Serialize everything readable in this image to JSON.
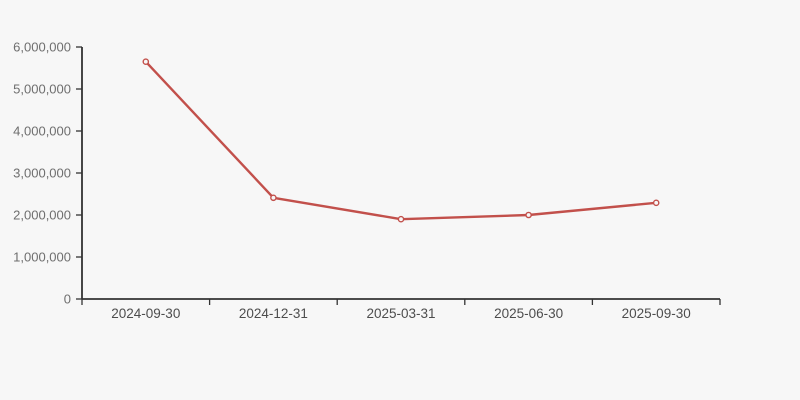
{
  "chart_data": {
    "type": "line",
    "title": "",
    "categories": [
      "2024-09-30",
      "2024-12-31",
      "2025-03-31",
      "2025-06-30",
      "2025-09-30"
    ],
    "series": [
      {
        "name": "value",
        "values": [
          5650000,
          2410000,
          1900000,
          2000000,
          2290000
        ]
      }
    ],
    "xlabel": "",
    "ylabel": "",
    "ylim": [
      0,
      6000000
    ],
    "y_tick_interval": 1000000,
    "y_tick_labels": [
      "0",
      "1,000,000",
      "2,000,000",
      "3,000,000",
      "4,000,000",
      "5,000,000",
      "6,000,000"
    ],
    "grid": false,
    "legend": false,
    "marker_shape": "hollow-circle",
    "colors": {
      "line": "#c2504b",
      "marker_fill": "#f7f7f7",
      "axis": "#333333",
      "x_tick_label": "#4d4d4d",
      "y_tick_label": "#6e6e6e",
      "background": "#f7f7f7"
    }
  }
}
